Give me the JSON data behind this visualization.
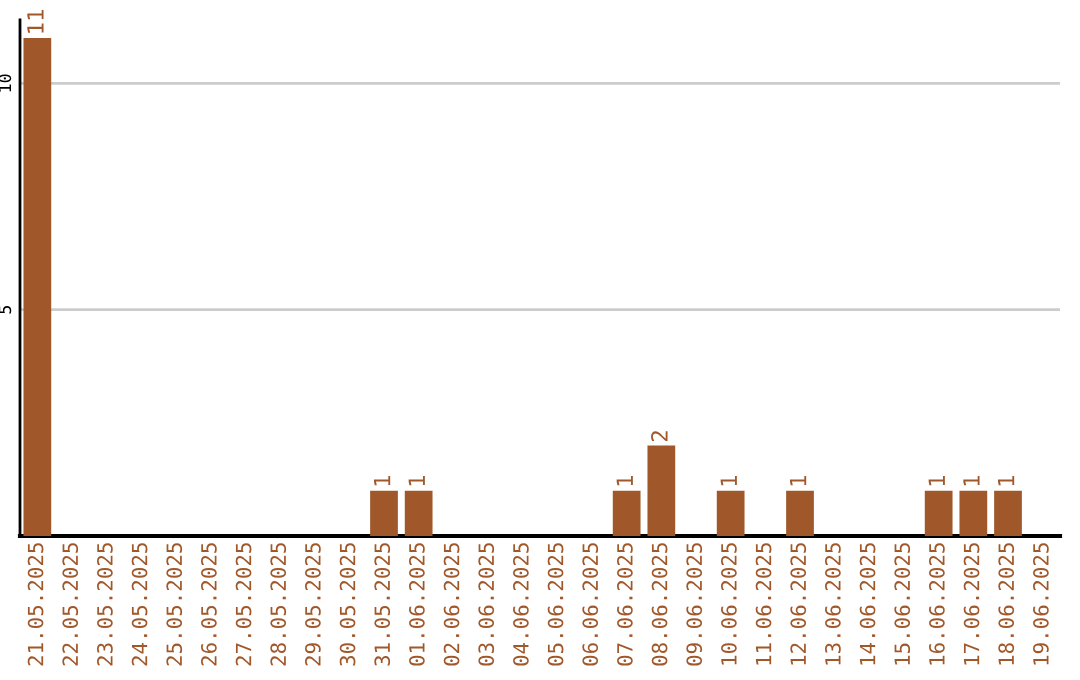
{
  "chart_data": {
    "type": "bar",
    "categories": [
      "21.05.2025",
      "22.05.2025",
      "23.05.2025",
      "24.05.2025",
      "25.05.2025",
      "26.05.2025",
      "27.05.2025",
      "28.05.2025",
      "29.05.2025",
      "30.05.2025",
      "31.05.2025",
      "01.06.2025",
      "02.06.2025",
      "03.06.2025",
      "04.06.2025",
      "05.06.2025",
      "06.06.2025",
      "07.06.2025",
      "08.06.2025",
      "09.06.2025",
      "10.06.2025",
      "11.06.2025",
      "12.06.2025",
      "13.06.2025",
      "14.06.2025",
      "15.06.2025",
      "16.06.2025",
      "17.06.2025",
      "18.06.2025",
      "19.06.2025"
    ],
    "values": [
      11,
      0,
      0,
      0,
      0,
      0,
      0,
      0,
      0,
      0,
      1,
      1,
      0,
      0,
      0,
      0,
      0,
      1,
      2,
      0,
      1,
      0,
      1,
      0,
      0,
      0,
      1,
      1,
      1,
      0
    ],
    "value_labels": [
      "11",
      null,
      null,
      null,
      null,
      null,
      null,
      null,
      null,
      null,
      "1",
      "1",
      null,
      null,
      null,
      null,
      null,
      "1",
      "2",
      null,
      "1",
      null,
      "1",
      null,
      null,
      null,
      "1",
      "1",
      "1",
      null
    ],
    "color": "#a0582a",
    "ylim": [
      0,
      11.4
    ],
    "yticks": [
      5,
      10
    ],
    "grid": "y"
  }
}
